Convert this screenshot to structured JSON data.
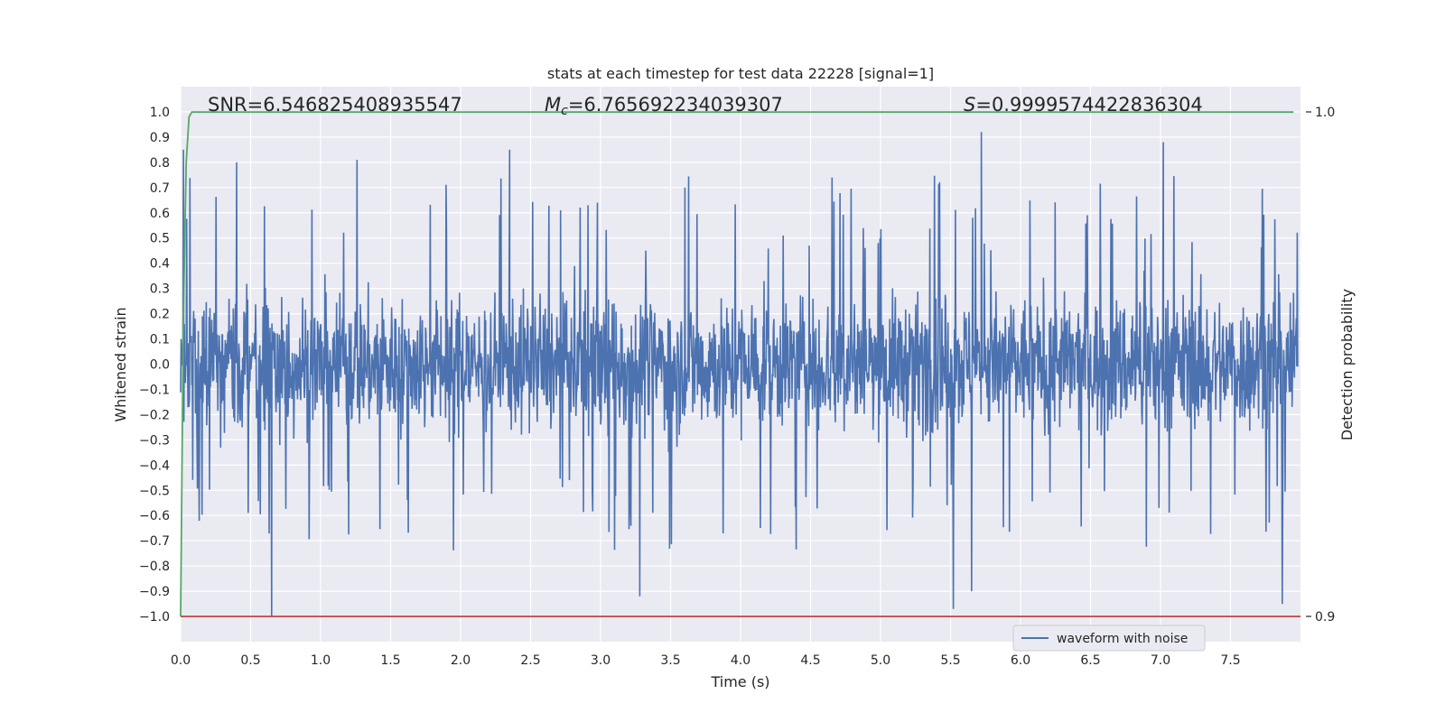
{
  "chart_data": {
    "type": "line",
    "title": "stats at each timestep for test data 22228 [signal=1]",
    "xlabel": "Time (s)",
    "ylabel": "Whitened strain",
    "y2label": "Detection probability",
    "xlim": [
      0.0,
      8.0
    ],
    "ylim": [
      -1.1,
      1.1
    ],
    "y2lim": [
      0.9,
      1.0
    ],
    "x_ticks": [
      "0.0",
      "0.5",
      "1.0",
      "1.5",
      "2.0",
      "2.5",
      "3.0",
      "3.5",
      "4.0",
      "4.5",
      "5.0",
      "5.5",
      "6.0",
      "6.5",
      "7.0",
      "7.5"
    ],
    "y_ticks": [
      "1.0",
      "0.9",
      "0.8",
      "0.7",
      "0.6",
      "0.5",
      "0.4",
      "0.3",
      "0.2",
      "0.1",
      "0.0",
      "−0.1",
      "−0.2",
      "−0.3",
      "−0.4",
      "−0.5",
      "−0.6",
      "−0.7",
      "−0.8",
      "−0.9",
      "−1.0"
    ],
    "y2_ticks": [
      "1.0",
      "0.9"
    ],
    "grid": true,
    "legend_position": "lower-right",
    "annotations": {
      "snr": "SNR=6.546825408935547",
      "mc": "=6.765692234039307",
      "mc_symbol": "M",
      "mc_sub": "c",
      "s": "=0.9999574422836304",
      "s_symbol": "S"
    },
    "series": [
      {
        "name": "waveform with noise",
        "color": "#4c72b0",
        "description_values": "noise-like whitened strain, amplitude mostly within ±0.5, peaks near ±0.9",
        "peaks": [
          {
            "x": 0.02,
            "y": 0.85
          },
          {
            "x": 0.4,
            "y": 0.8
          },
          {
            "x": 1.26,
            "y": 0.81
          },
          {
            "x": 2.35,
            "y": 0.85
          },
          {
            "x": 5.72,
            "y": 0.92
          },
          {
            "x": 7.02,
            "y": 0.88
          },
          {
            "x": 0.65,
            "y": -1.0
          },
          {
            "x": 5.52,
            "y": -0.97
          },
          {
            "x": 3.28,
            "y": -0.92
          },
          {
            "x": 5.65,
            "y": -0.9
          },
          {
            "x": 7.87,
            "y": -0.95
          }
        ]
      },
      {
        "name": "",
        "color": "#55a868",
        "axis": "right",
        "x": [
          0.0,
          0.02,
          0.04,
          0.06,
          0.08,
          7.95
        ],
        "values": [
          0.9,
          0.96,
          0.99,
          0.999,
          0.99996,
          0.99996
        ]
      },
      {
        "name": "",
        "color": "#c44e52",
        "axis": "left",
        "x": [
          0.0,
          8.0
        ],
        "values": [
          -1.0,
          -1.0
        ]
      }
    ]
  }
}
